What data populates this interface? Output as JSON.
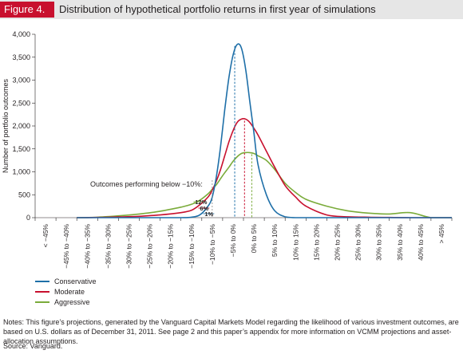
{
  "figure": {
    "badge": "Figure 4.",
    "title": "Distribution of hypothetical portfolio returns in first year of simulations"
  },
  "colors": {
    "conservative": "#1e6fa8",
    "moderate": "#c8102e",
    "aggressive": "#7aab3a",
    "header_bg": "#e6e6e6",
    "badge_bg": "#c8102e"
  },
  "chart_data": {
    "type": "line",
    "ylabel": "Number of portfolio outcomes",
    "ylim": [
      0,
      4000
    ],
    "yticks": [
      0,
      500,
      1000,
      1500,
      2000,
      2500,
      3000,
      3500,
      4000
    ],
    "ytick_labels": [
      "0",
      "500",
      "1,000",
      "1,500",
      "2,000",
      "2,500",
      "3,000",
      "3,500",
      "4,000"
    ],
    "categories": [
      "< −45%",
      "−45% to −40%",
      "−40% to −35%",
      "−35% to −30%",
      "−30% to −25%",
      "−25% to −20%",
      "−20% to −15%",
      "−15% to −10%",
      "−10% to −5%",
      "−5% to 0%",
      "0% to 5%",
      "5% to 10%",
      "10% to 15%",
      "15% to 20%",
      "20% to 25%",
      "25% to 30%",
      "30% to 35%",
      "35% to 40%",
      "40% to 45%",
      "> 45%"
    ],
    "x": [
      -7.5,
      -6.5,
      -5.5,
      -4.5,
      -3.5,
      -2.5,
      -2.0,
      -1.6,
      -1.2,
      -1.0,
      -0.8,
      -0.6,
      -0.4,
      -0.2,
      0.0,
      0.2,
      0.4,
      0.6,
      0.8,
      1.0,
      1.2,
      1.6,
      2.0,
      2.5,
      3.0,
      3.5,
      4.5,
      5.5,
      6.5,
      7.5,
      8.5,
      9.5,
      10.5
    ],
    "series": [
      {
        "name": "Conservative",
        "values": [
          0,
          0,
          0,
          0,
          0,
          0,
          10,
          60,
          250,
          450,
          900,
          1550,
          2350,
          3050,
          3550,
          3780,
          3700,
          3250,
          2550,
          1850,
          1150,
          500,
          150,
          20,
          0,
          0,
          0,
          0,
          0,
          0,
          0,
          0,
          0
        ]
      },
      {
        "name": "Moderate",
        "values": [
          0,
          5,
          15,
          30,
          60,
          110,
          160,
          280,
          450,
          600,
          800,
          1050,
          1350,
          1650,
          1900,
          2080,
          2150,
          2150,
          2080,
          1950,
          1800,
          1450,
          1100,
          700,
          450,
          250,
          60,
          20,
          10,
          5,
          0,
          0,
          0
        ]
      },
      {
        "name": "Aggressive",
        "values": [
          0,
          10,
          40,
          80,
          140,
          230,
          290,
          380,
          520,
          620,
          720,
          850,
          980,
          1100,
          1230,
          1330,
          1400,
          1420,
          1420,
          1400,
          1350,
          1250,
          1050,
          750,
          550,
          400,
          250,
          150,
          100,
          80,
          110,
          0,
          0
        ]
      }
    ],
    "annotations": {
      "below_label": "Outcomes performing below −10%:",
      "values": [
        "12%",
        "6%",
        "1%"
      ]
    },
    "peaks_x": [
      0.08,
      0.55,
      0.9
    ],
    "legend_position": "bottom-left"
  },
  "legend": [
    "Conservative",
    "Moderate",
    "Aggressive"
  ],
  "notes": "Notes: This figure’s projections, generated by the Vanguard Capital Markets Model regarding the likelihood of various investment outcomes, are based on U.S. dollars as of December 31, 2011. See page 2 and this paper’s appendix for more information on VCMM projections and asset-allocation assumptions.",
  "source": "Source: Vanguard."
}
